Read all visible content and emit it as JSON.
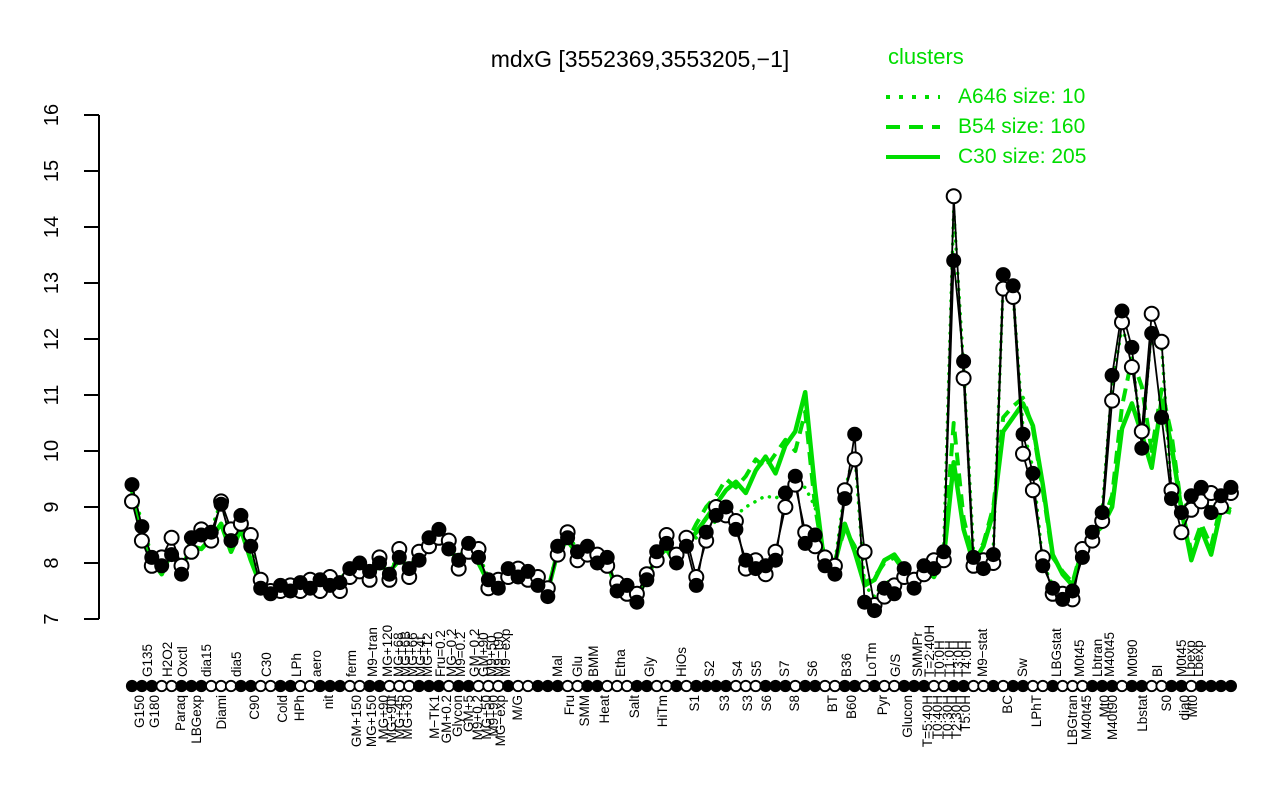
{
  "title": "mdxG [3552369,3553205,−1]",
  "colors": {
    "cluster_green": "#00DD00",
    "line_black": "#000000",
    "background": "#FFFFFF"
  },
  "legend": {
    "title": "clusters",
    "items": [
      {
        "label": "A646 size: 10",
        "line_style": "dotted"
      },
      {
        "label": "B54 size: 160",
        "line_style": "dashed"
      },
      {
        "label": "C30 size: 205",
        "line_style": "solid"
      }
    ]
  },
  "chart_data": {
    "type": "line",
    "title": "mdxG [3552369,3553205,−1]",
    "ylabel": "",
    "xlabel": "",
    "ylim": [
      7,
      16
    ],
    "yticks": [
      7,
      8,
      9,
      10,
      11,
      12,
      13,
      14,
      15,
      16
    ],
    "grid": false,
    "legend_position": "top-right",
    "x_count": 112,
    "x_labels_top": [
      {
        "text": "G135",
        "px": 148
      },
      {
        "text": "H2O2",
        "px": 168
      },
      {
        "text": "Oxctl",
        "px": 183
      },
      {
        "text": "dia15",
        "px": 207
      },
      {
        "text": "dia5",
        "px": 237
      },
      {
        "text": "C30",
        "px": 267
      },
      {
        "text": "LPh",
        "px": 297
      },
      {
        "text": "aero",
        "px": 317
      },
      {
        "text": "ferm",
        "px": 352
      },
      {
        "text": "M9−tran",
        "px": 373
      },
      {
        "text": "MG+120",
        "px": 388
      },
      {
        "text": "MG+68",
        "px": 399
      },
      {
        "text": "MG+6B",
        "px": 406
      },
      {
        "text": "MG+66",
        "px": 413
      },
      {
        "text": "MG+4t",
        "px": 421
      },
      {
        "text": "MG+12",
        "px": 428
      },
      {
        "text": "Fru=0.2",
        "px": 441
      },
      {
        "text": "MG−0.2",
        "px": 452
      },
      {
        "text": "M9=0.2",
        "px": 461
      },
      {
        "text": "GM−0.2",
        "px": 475
      },
      {
        "text": "GM+90",
        "px": 484
      },
      {
        "text": "M9+50",
        "px": 492
      },
      {
        "text": "M9−t90",
        "px": 499
      },
      {
        "text": "M9−exp",
        "px": 506
      },
      {
        "text": "Mal",
        "px": 558
      },
      {
        "text": "Glu",
        "px": 578
      },
      {
        "text": "BMM",
        "px": 594
      },
      {
        "text": "Etha",
        "px": 621
      },
      {
        "text": "Gly",
        "px": 650
      },
      {
        "text": "HiOs",
        "px": 682
      },
      {
        "text": "S2",
        "px": 710
      },
      {
        "text": "S4",
        "px": 738
      },
      {
        "text": "S5",
        "px": 757
      },
      {
        "text": "S7",
        "px": 785
      },
      {
        "text": "S6",
        "px": 813
      },
      {
        "text": "B36",
        "px": 847
      },
      {
        "text": "LoTm",
        "px": 872
      },
      {
        "text": "G/S",
        "px": 896
      },
      {
        "text": "SMMPr",
        "px": 918
      },
      {
        "text": "T=2:40H",
        "px": 930
      },
      {
        "text": "T0:0H",
        "px": 940
      },
      {
        "text": "T1:0H",
        "px": 950
      },
      {
        "text": "T3:0H",
        "px": 959
      },
      {
        "text": "T4:0H",
        "px": 967
      },
      {
        "text": "M9−stat",
        "px": 983
      },
      {
        "text": "Sw",
        "px": 1023
      },
      {
        "text": "LBGstat",
        "px": 1057
      },
      {
        "text": "M0t45",
        "px": 1080
      },
      {
        "text": "Lbtran",
        "px": 1098
      },
      {
        "text": "M40t45",
        "px": 1110
      },
      {
        "text": "M0t90",
        "px": 1133
      },
      {
        "text": "Bl",
        "px": 1158
      },
      {
        "text": "M0t45",
        "px": 1182
      },
      {
        "text": "Lbexp",
        "px": 1191
      },
      {
        "text": "Lbexp",
        "px": 1199
      }
    ],
    "x_labels_bottom": [
      {
        "text": "G150",
        "px": 140
      },
      {
        "text": "G180",
        "px": 155
      },
      {
        "text": "Paraq",
        "px": 181
      },
      {
        "text": "LBGexp",
        "px": 197
      },
      {
        "text": "Diami",
        "px": 222
      },
      {
        "text": "C90",
        "px": 255
      },
      {
        "text": "Cold",
        "px": 283
      },
      {
        "text": "HPh",
        "px": 300
      },
      {
        "text": "nit",
        "px": 329
      },
      {
        "text": "GM+150",
        "px": 357
      },
      {
        "text": "MG+150",
        "px": 372
      },
      {
        "text": "MG+90",
        "px": 384
      },
      {
        "text": "MG+90t",
        "px": 392
      },
      {
        "text": "MG+45",
        "px": 400
      },
      {
        "text": "MG+30",
        "px": 408
      },
      {
        "text": "M−TK1",
        "px": 435
      },
      {
        "text": "GM+0.2",
        "px": 447
      },
      {
        "text": "Glycon",
        "px": 458
      },
      {
        "text": "GM+5",
        "px": 469
      },
      {
        "text": "M9+0.2",
        "px": 478
      },
      {
        "text": "MG+50",
        "px": 487
      },
      {
        "text": "M9+90",
        "px": 494
      },
      {
        "text": "MG−exp",
        "px": 501
      },
      {
        "text": "M/G",
        "px": 518
      },
      {
        "text": "Fru",
        "px": 570
      },
      {
        "text": "SMM",
        "px": 585
      },
      {
        "text": "Heat",
        "px": 605
      },
      {
        "text": "Salt",
        "px": 635
      },
      {
        "text": "HiTm",
        "px": 663
      },
      {
        "text": "S1",
        "px": 695
      },
      {
        "text": "S3",
        "px": 725
      },
      {
        "text": "S3",
        "px": 748
      },
      {
        "text": "S6",
        "px": 767
      },
      {
        "text": "S8",
        "px": 795
      },
      {
        "text": "BT",
        "px": 833
      },
      {
        "text": "B60",
        "px": 852
      },
      {
        "text": "Pyr",
        "px": 883
      },
      {
        "text": "Glucon",
        "px": 908
      },
      {
        "text": "T=5:40H",
        "px": 928
      },
      {
        "text": "T0:40H",
        "px": 938
      },
      {
        "text": "T0:30H",
        "px": 948
      },
      {
        "text": "T2:30H",
        "px": 957
      },
      {
        "text": "T5:0H",
        "px": 966
      },
      {
        "text": "BC",
        "px": 1008
      },
      {
        "text": "LPhT",
        "px": 1037
      },
      {
        "text": "LBGtran",
        "px": 1073
      },
      {
        "text": "M40t45",
        "px": 1087
      },
      {
        "text": "Mt0",
        "px": 1105
      },
      {
        "text": "M40t90",
        "px": 1113
      },
      {
        "text": "Lbstat",
        "px": 1143
      },
      {
        "text": "S0",
        "px": 1167
      },
      {
        "text": "dia0",
        "px": 1185
      },
      {
        "text": "Mt0",
        "px": 1193
      }
    ],
    "series": [
      {
        "name": "gene-profile-filled",
        "color": "#000000",
        "marker": "filled",
        "line": "solid",
        "values": [
          9.4,
          8.65,
          8.1,
          7.95,
          8.15,
          7.8,
          8.45,
          8.5,
          8.55,
          9.05,
          8.4,
          8.85,
          8.3,
          7.55,
          7.45,
          7.6,
          7.5,
          7.65,
          7.55,
          7.7,
          7.6,
          7.65,
          7.9,
          8.0,
          7.85,
          8.0,
          7.8,
          8.1,
          7.9,
          8.05,
          8.45,
          8.6,
          8.25,
          8.05,
          8.35,
          8.1,
          7.7,
          7.55,
          7.9,
          7.75,
          7.85,
          7.6,
          7.4,
          8.3,
          8.45,
          8.2,
          8.3,
          8.0,
          8.1,
          7.5,
          7.6,
          7.3,
          7.7,
          8.2,
          8.35,
          8.0,
          8.3,
          7.6,
          8.55,
          8.85,
          9.0,
          8.6,
          8.05,
          7.9,
          7.95,
          8.05,
          9.25,
          9.55,
          8.35,
          8.5,
          7.95,
          7.8,
          9.15,
          10.3,
          7.3,
          7.15,
          7.55,
          7.45,
          7.9,
          7.55,
          7.95,
          7.9,
          8.2,
          13.4,
          11.6,
          8.1,
          7.9,
          8.15,
          13.15,
          12.95,
          10.3,
          9.6,
          7.95,
          7.55,
          7.35,
          7.5,
          8.1,
          8.55,
          8.9,
          11.35,
          12.5,
          11.85,
          10.05,
          12.1,
          10.6,
          9.15,
          8.9,
          9.2,
          9.35,
          8.9,
          9.2,
          9.35
        ]
      },
      {
        "name": "gene-profile-open",
        "color": "#000000",
        "marker": "open",
        "line": "solid",
        "values": [
          9.1,
          8.4,
          7.95,
          8.1,
          8.45,
          7.95,
          8.2,
          8.6,
          8.4,
          9.1,
          8.6,
          8.7,
          8.5,
          7.7,
          7.5,
          7.5,
          7.6,
          7.5,
          7.7,
          7.5,
          7.75,
          7.5,
          7.75,
          7.85,
          7.7,
          8.1,
          7.7,
          8.25,
          7.75,
          8.2,
          8.3,
          8.45,
          8.4,
          7.9,
          8.2,
          8.25,
          7.55,
          7.7,
          7.75,
          7.9,
          7.7,
          7.75,
          7.55,
          8.15,
          8.55,
          8.05,
          8.15,
          8.15,
          7.95,
          7.65,
          7.45,
          7.45,
          7.8,
          8.05,
          8.5,
          8.15,
          8.45,
          7.75,
          8.4,
          9.0,
          8.85,
          8.75,
          7.9,
          8.05,
          7.8,
          8.2,
          9.0,
          9.4,
          8.55,
          8.3,
          8.1,
          7.95,
          9.3,
          9.85,
          8.2,
          7.25,
          7.4,
          7.6,
          7.75,
          7.7,
          7.8,
          8.05,
          8.05,
          14.55,
          11.3,
          7.95,
          8.05,
          8.0,
          12.9,
          12.75,
          9.95,
          9.3,
          8.1,
          7.45,
          7.45,
          7.35,
          8.25,
          8.4,
          8.75,
          10.9,
          12.3,
          11.5,
          10.35,
          12.45,
          11.95,
          9.3,
          8.55,
          8.95,
          9.1,
          9.25,
          9.0,
          9.25
        ]
      },
      {
        "name": "A646",
        "cluster_size": 10,
        "color": "#00DD00",
        "marker": "none",
        "line": "dotted",
        "values": [
          9.45,
          8.7,
          8.15,
          8.0,
          8.2,
          7.85,
          8.5,
          8.55,
          8.6,
          9.1,
          8.45,
          8.9,
          8.35,
          7.6,
          7.5,
          7.65,
          7.55,
          7.7,
          7.6,
          7.75,
          7.65,
          7.7,
          7.95,
          8.05,
          7.9,
          8.05,
          7.85,
          8.15,
          7.95,
          8.1,
          8.5,
          8.65,
          8.3,
          8.1,
          8.4,
          8.15,
          7.75,
          7.6,
          7.95,
          7.8,
          7.9,
          7.65,
          7.45,
          8.35,
          8.5,
          8.25,
          8.35,
          8.05,
          8.15,
          7.55,
          7.65,
          7.35,
          7.75,
          8.25,
          8.4,
          8.05,
          8.35,
          8.45,
          8.6,
          8.75,
          8.9,
          8.85,
          9.0,
          9.1,
          9.2,
          9.15,
          9.3,
          9.4,
          9.35,
          9.0,
          8.1,
          8.0,
          9.3,
          10.0,
          7.6,
          7.4,
          7.7,
          7.6,
          7.95,
          7.65,
          8.0,
          7.95,
          8.3,
          14.3,
          11.5,
          8.2,
          8.0,
          8.25,
          13.0,
          12.8,
          10.4,
          9.7,
          8.0,
          7.6,
          7.4,
          7.55,
          8.15,
          8.6,
          8.95,
          11.2,
          12.2,
          11.7,
          10.2,
          12.2,
          11.9,
          9.2,
          8.95,
          9.15,
          9.3,
          8.95,
          9.15,
          9.3
        ]
      },
      {
        "name": "B54",
        "cluster_size": 160,
        "color": "#00DD00",
        "marker": "none",
        "line": "dashed",
        "values": [
          9.3,
          8.5,
          8.05,
          7.8,
          8.2,
          7.9,
          8.3,
          8.25,
          8.45,
          8.7,
          8.2,
          8.6,
          8.05,
          7.6,
          7.5,
          7.55,
          7.45,
          7.6,
          7.5,
          7.65,
          7.55,
          7.6,
          7.85,
          7.95,
          7.8,
          7.95,
          7.85,
          8.05,
          7.95,
          8.1,
          8.5,
          8.55,
          8.2,
          8.1,
          8.3,
          8.0,
          7.65,
          7.6,
          7.85,
          7.7,
          7.8,
          7.65,
          7.5,
          8.2,
          8.4,
          8.15,
          8.25,
          7.95,
          8.05,
          7.45,
          7.55,
          7.35,
          7.75,
          8.1,
          8.25,
          7.95,
          8.35,
          8.7,
          9.0,
          9.2,
          9.5,
          9.35,
          9.55,
          9.85,
          9.7,
          9.95,
          10.2,
          10.0,
          10.7,
          9.0,
          7.95,
          8.05,
          8.6,
          8.3,
          7.65,
          7.75,
          8.0,
          8.1,
          7.85,
          7.65,
          7.95,
          7.8,
          8.15,
          10.5,
          8.8,
          8.05,
          8.35,
          9.0,
          10.6,
          10.8,
          10.95,
          10.4,
          9.3,
          8.1,
          7.85,
          7.65,
          8.3,
          8.55,
          8.7,
          9.2,
          10.8,
          11.65,
          11.15,
          10.0,
          11.1,
          10.3,
          9.0,
          8.2,
          8.7,
          8.3,
          9.05,
          8.95
        ]
      },
      {
        "name": "C30",
        "cluster_size": 205,
        "color": "#00DD00",
        "marker": "none",
        "line": "solid-thick",
        "values": [
          9.3,
          8.5,
          8.05,
          7.8,
          8.2,
          7.9,
          8.3,
          8.25,
          8.45,
          8.7,
          8.2,
          8.6,
          8.05,
          7.6,
          7.5,
          7.55,
          7.45,
          7.6,
          7.5,
          7.65,
          7.55,
          7.6,
          7.85,
          7.95,
          7.8,
          7.95,
          7.85,
          8.05,
          7.95,
          8.1,
          8.5,
          8.55,
          8.2,
          8.1,
          8.3,
          8.0,
          7.65,
          7.6,
          7.85,
          7.7,
          7.8,
          7.65,
          7.5,
          8.2,
          8.4,
          8.15,
          8.25,
          7.95,
          8.05,
          7.45,
          7.55,
          7.35,
          7.75,
          8.1,
          8.25,
          7.95,
          8.35,
          8.55,
          8.8,
          9.05,
          9.3,
          9.45,
          9.25,
          9.65,
          9.9,
          9.6,
          10.1,
          10.35,
          11.05,
          9.3,
          7.9,
          8.0,
          8.7,
          8.2,
          7.6,
          7.7,
          8.05,
          8.15,
          7.9,
          7.6,
          7.9,
          7.75,
          8.1,
          9.8,
          8.6,
          8.0,
          8.3,
          8.9,
          10.35,
          10.6,
          10.85,
          10.45,
          9.4,
          8.15,
          7.8,
          7.6,
          8.25,
          8.5,
          8.65,
          9.0,
          10.4,
          10.85,
          10.3,
          9.7,
          10.9,
          10.1,
          8.95,
          8.05,
          8.6,
          8.15,
          8.95,
          8.9
        ]
      }
    ],
    "rug_pattern": "fffoofffoooffooffoofffooffooofffoffooofoofffooffoooffoofoffffooofffoffooffofoofffooffoofoffoofooofffoffooffofff"
  }
}
